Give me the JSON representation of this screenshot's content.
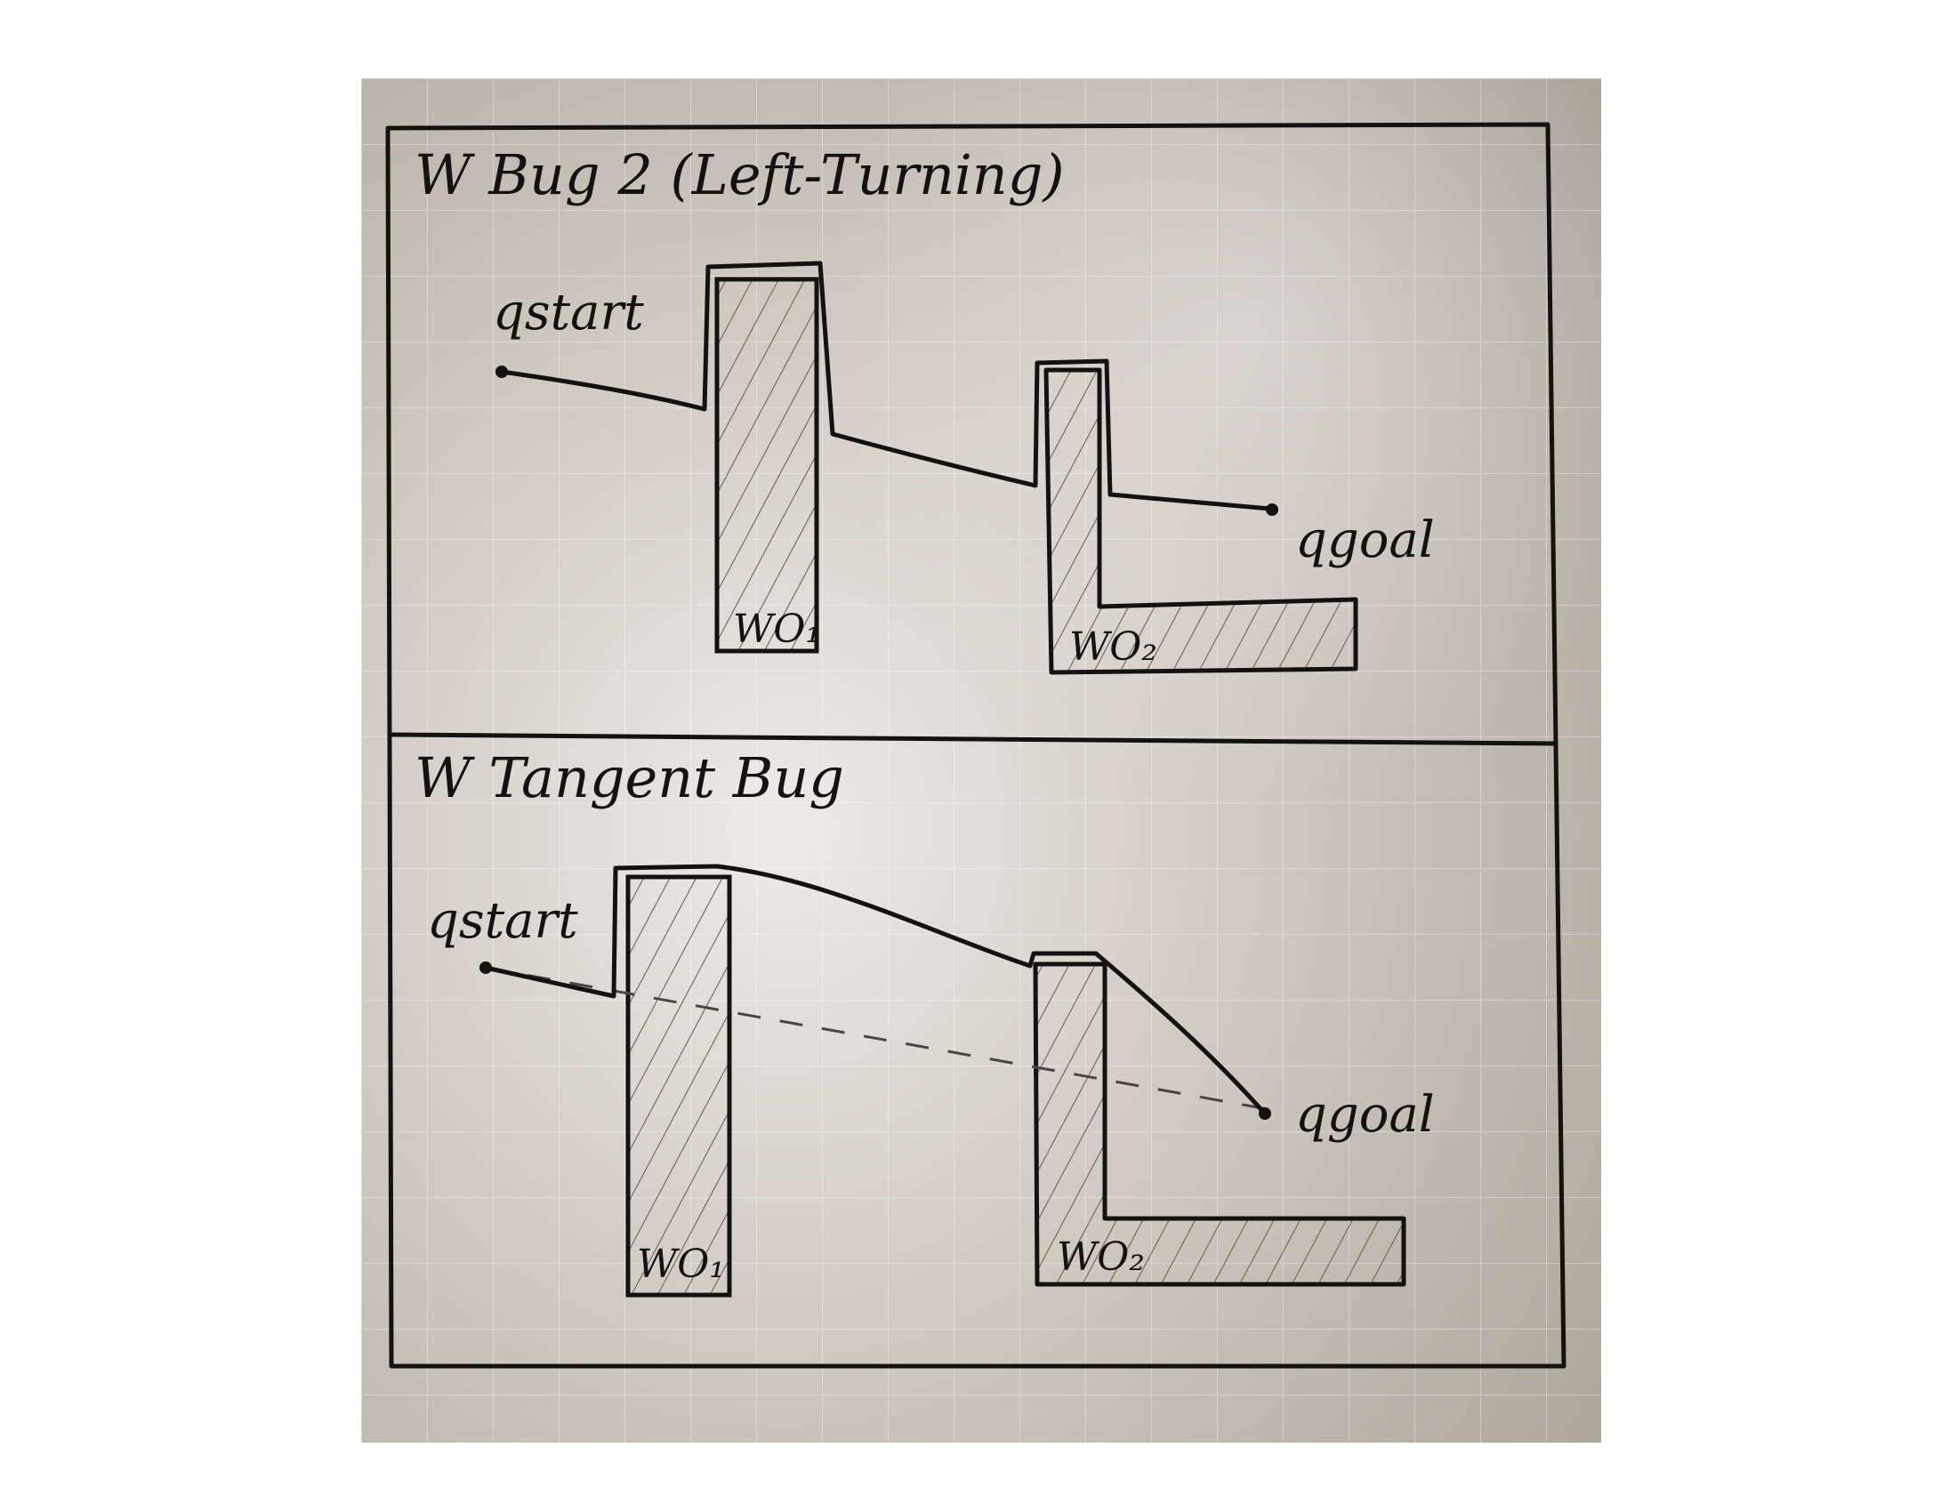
{
  "panels": [
    {
      "title": "W    Bug 2 (Left-Turning)",
      "start_label": "qstart",
      "goal_label": "qgoal",
      "obstacle1_label": "WO₁",
      "obstacle2_label": "WO₂"
    },
    {
      "title": "W  Tangent Bug",
      "start_label": "qstart",
      "goal_label": "qgoal",
      "obstacle1_label": "WO₁",
      "obstacle2_label": "WO₂"
    }
  ],
  "colors": {
    "paper": "#d3cfc6",
    "paper_shadow": "#8f8a80",
    "ink": "#141210",
    "hatch": "#6e6456",
    "grid": "#ffffff"
  }
}
